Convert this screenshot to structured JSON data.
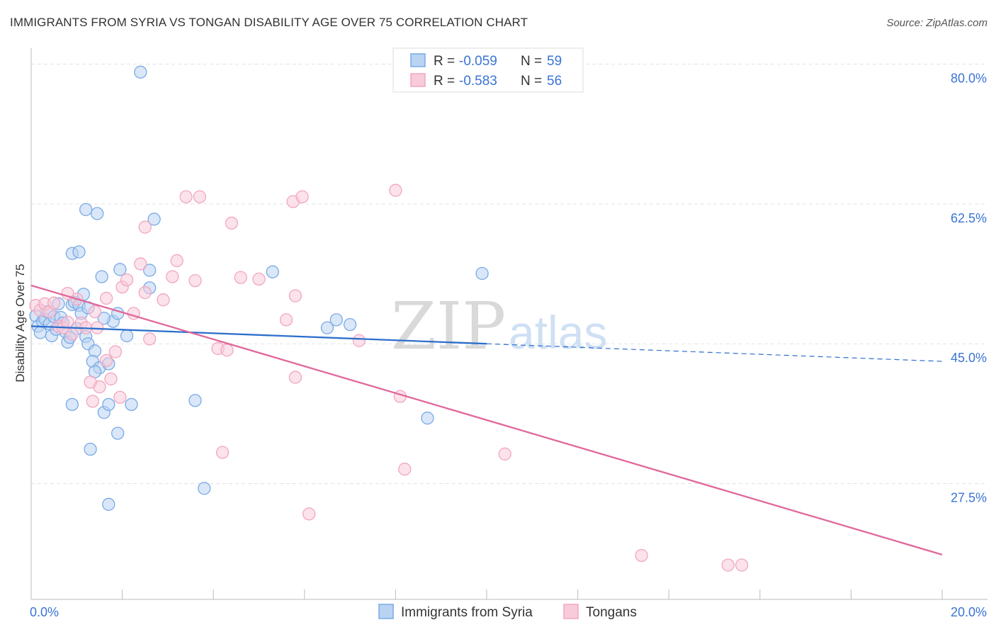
{
  "title": "IMMIGRANTS FROM SYRIA VS TONGAN DISABILITY AGE OVER 75 CORRELATION CHART",
  "source": "Source: ZipAtlas.com",
  "watermark": {
    "zip": "ZIP",
    "atlas": "atlas"
  },
  "chart_data": {
    "type": "scatter",
    "xlabel": "",
    "ylabel": "Disability Age Over 75",
    "xlim": [
      0,
      20
    ],
    "ylim": [
      13,
      82
    ],
    "x_ticks": [
      {
        "value": 0,
        "label": "0.0%"
      },
      {
        "value": 20,
        "label": "20.0%"
      }
    ],
    "y_ticks": [
      {
        "value": 27.5,
        "label": "27.5%"
      },
      {
        "value": 45.0,
        "label": "45.0%"
      },
      {
        "value": 62.5,
        "label": "62.5%"
      },
      {
        "value": 80.0,
        "label": "80.0%"
      }
    ],
    "grid": "horizontal dashed",
    "legend": {
      "placement": "top-center",
      "entries": [
        {
          "series": "Immigrants from Syria",
          "r_label": "R =",
          "r_value": "-0.059",
          "n_label": "N =",
          "n_value": "59"
        },
        {
          "series": "Tongans",
          "r_label": "R =",
          "r_value": "-0.583",
          "n_label": "N =",
          "n_value": "56"
        }
      ]
    },
    "series": [
      {
        "name": "Immigrants from Syria",
        "color": "#7aaae6",
        "fill": "#b9d3f3",
        "trend": {
          "x0": 0,
          "y0": 47.2,
          "x1": 10,
          "y1": 45.0,
          "dash_to_x": 20,
          "dash_to_y": 42.8,
          "color": "#2d6fcc"
        },
        "points": [
          [
            0.1,
            48.5
          ],
          [
            0.15,
            47.2
          ],
          [
            0.2,
            46.4
          ],
          [
            0.25,
            47.8
          ],
          [
            0.3,
            48.1
          ],
          [
            0.35,
            49.0
          ],
          [
            0.4,
            47.5
          ],
          [
            0.45,
            46.0
          ],
          [
            0.5,
            48.4
          ],
          [
            0.55,
            46.8
          ],
          [
            0.6,
            50.0
          ],
          [
            0.65,
            48.3
          ],
          [
            0.7,
            47.6
          ],
          [
            0.75,
            46.5
          ],
          [
            0.8,
            45.2
          ],
          [
            0.85,
            45.8
          ],
          [
            0.9,
            49.9
          ],
          [
            0.95,
            50.2
          ],
          [
            1.0,
            46.9
          ],
          [
            1.05,
            49.8
          ],
          [
            1.1,
            48.8
          ],
          [
            1.15,
            51.2
          ],
          [
            1.2,
            45.9
          ],
          [
            1.25,
            45.0
          ],
          [
            0.9,
            56.3
          ],
          [
            1.05,
            56.5
          ],
          [
            1.2,
            61.8
          ],
          [
            1.45,
            61.3
          ],
          [
            1.55,
            53.4
          ],
          [
            1.25,
            49.5
          ],
          [
            1.4,
            44.1
          ],
          [
            1.35,
            42.8
          ],
          [
            1.5,
            42.0
          ],
          [
            1.7,
            42.5
          ],
          [
            1.8,
            47.8
          ],
          [
            1.9,
            48.8
          ],
          [
            2.1,
            46.0
          ],
          [
            1.95,
            54.3
          ],
          [
            2.6,
            54.2
          ],
          [
            2.6,
            52.0
          ],
          [
            2.7,
            60.6
          ],
          [
            1.6,
            48.2
          ],
          [
            2.4,
            79.0
          ],
          [
            5.3,
            54.0
          ],
          [
            6.5,
            47.0
          ],
          [
            7.0,
            47.4
          ],
          [
            6.7,
            48.0
          ],
          [
            9.9,
            53.8
          ],
          [
            0.9,
            37.4
          ],
          [
            1.6,
            36.4
          ],
          [
            1.7,
            37.4
          ],
          [
            2.2,
            37.4
          ],
          [
            3.6,
            37.9
          ],
          [
            1.3,
            31.8
          ],
          [
            1.9,
            33.8
          ],
          [
            3.8,
            26.9
          ],
          [
            1.7,
            24.9
          ],
          [
            8.7,
            35.7
          ],
          [
            1.4,
            41.5
          ]
        ]
      },
      {
        "name": "Tongans",
        "color": "#f2a6bf",
        "fill": "#f8cbdb",
        "trend": {
          "x0": 0,
          "y0": 52.3,
          "x1": 20,
          "y1": 18.6,
          "color": "#e0679a"
        },
        "points": [
          [
            0.1,
            49.8
          ],
          [
            0.2,
            49.2
          ],
          [
            0.3,
            50.0
          ],
          [
            0.4,
            49.0
          ],
          [
            0.5,
            50.1
          ],
          [
            0.6,
            47.2
          ],
          [
            0.7,
            47.0
          ],
          [
            0.8,
            47.7
          ],
          [
            0.9,
            46.2
          ],
          [
            1.0,
            50.6
          ],
          [
            1.1,
            47.6
          ],
          [
            1.2,
            47.0
          ],
          [
            0.8,
            51.3
          ],
          [
            1.4,
            49.0
          ],
          [
            1.65,
            50.7
          ],
          [
            1.85,
            44.0
          ],
          [
            2.0,
            52.1
          ],
          [
            2.1,
            53.0
          ],
          [
            2.25,
            48.8
          ],
          [
            2.4,
            55.0
          ],
          [
            2.5,
            51.4
          ],
          [
            2.6,
            45.6
          ],
          [
            2.5,
            59.6
          ],
          [
            2.9,
            50.5
          ],
          [
            3.1,
            53.4
          ],
          [
            3.2,
            55.4
          ],
          [
            3.4,
            63.4
          ],
          [
            3.7,
            63.4
          ],
          [
            3.6,
            52.9
          ],
          [
            4.1,
            44.4
          ],
          [
            4.3,
            44.2
          ],
          [
            4.4,
            60.1
          ],
          [
            4.6,
            53.3
          ],
          [
            5.0,
            53.1
          ],
          [
            5.6,
            48.0
          ],
          [
            5.75,
            62.8
          ],
          [
            5.8,
            51.0
          ],
          [
            5.95,
            63.4
          ],
          [
            7.2,
            45.4
          ],
          [
            8.0,
            64.2
          ],
          [
            8.1,
            38.4
          ],
          [
            1.5,
            39.6
          ],
          [
            1.65,
            42.9
          ],
          [
            1.3,
            40.2
          ],
          [
            1.95,
            38.3
          ],
          [
            1.35,
            37.8
          ],
          [
            5.8,
            40.8
          ],
          [
            4.2,
            31.4
          ],
          [
            8.2,
            29.3
          ],
          [
            6.1,
            23.7
          ],
          [
            10.4,
            31.2
          ],
          [
            13.4,
            18.5
          ],
          [
            15.3,
            17.3
          ],
          [
            15.6,
            17.3
          ],
          [
            1.75,
            40.6
          ],
          [
            1.45,
            47.0
          ]
        ]
      }
    ]
  },
  "bottom_legend": [
    {
      "label": "Immigrants from Syria"
    },
    {
      "label": "Tongans"
    }
  ]
}
